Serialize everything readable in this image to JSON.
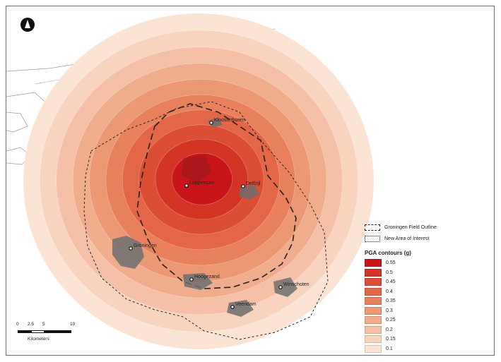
{
  "map": {
    "north_arrow": "north-arrow-icon",
    "cities": [
      {
        "name": "Kloosterburen"
      },
      {
        "name": "Loppersum"
      },
      {
        "name": "Delfzijl"
      },
      {
        "name": "Groningen"
      },
      {
        "name": "Hoogezand"
      },
      {
        "name": "Winschoten"
      },
      {
        "name": "Veendam"
      }
    ]
  },
  "legend": {
    "field_outline": "Groningen Field Outline",
    "new_area": "New Area of Interest",
    "title": "PGA contours (g)",
    "classes": [
      {
        "label": "0.55",
        "color": "#c9141c"
      },
      {
        "label": "0.5",
        "color": "#d33426"
      },
      {
        "label": "0.45",
        "color": "#db4d35"
      },
      {
        "label": "0.4",
        "color": "#e26647"
      },
      {
        "label": "0.35",
        "color": "#e8805d"
      },
      {
        "label": "0.3",
        "color": "#ec9875"
      },
      {
        "label": "0.25",
        "color": "#f0ad8e"
      },
      {
        "label": "0.2",
        "color": "#f4c1a6"
      },
      {
        "label": "0.15",
        "color": "#f8d3bd"
      },
      {
        "label": "0.1",
        "color": "#fbe4d4"
      }
    ]
  },
  "scalebar": {
    "ticks": [
      "0",
      "2.5",
      "5",
      "10"
    ],
    "unit": "Kilometers"
  }
}
